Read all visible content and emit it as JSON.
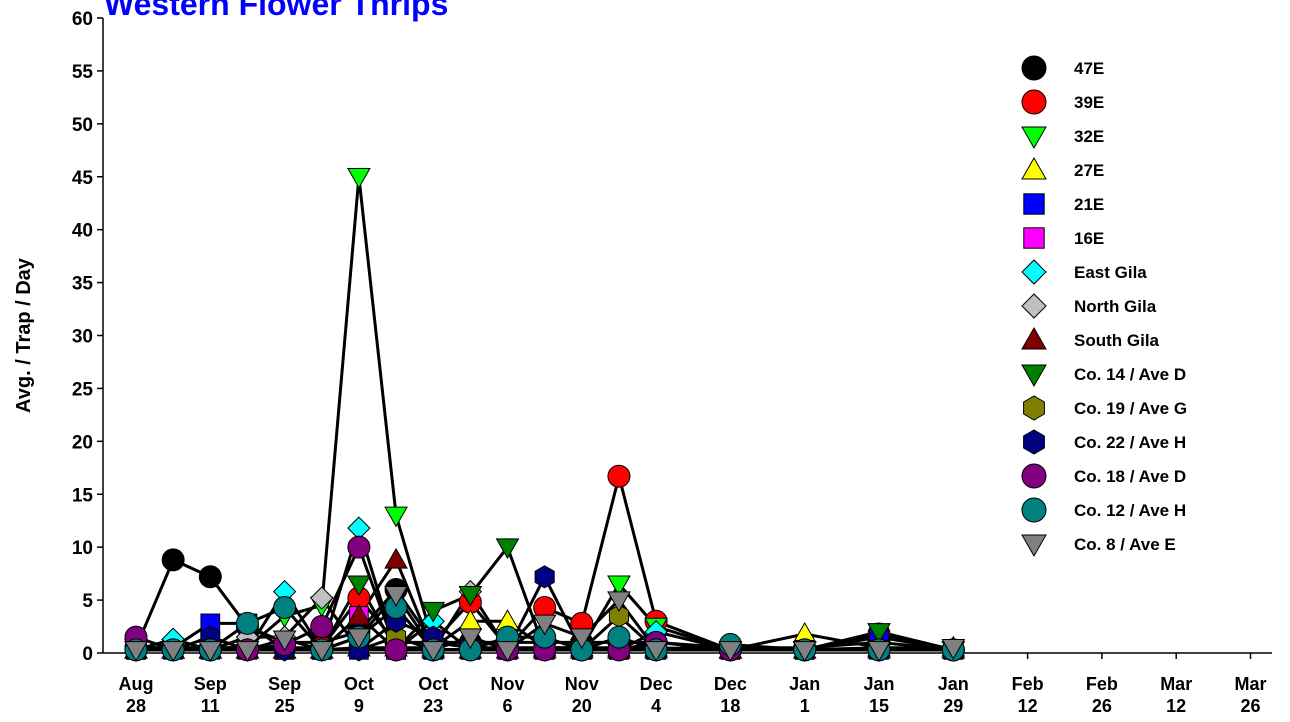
{
  "chart_data": {
    "type": "line",
    "title": "Western Flower Thrips",
    "xlabel": "",
    "ylabel": "Avg.  / Trap / Day",
    "ylim": [
      0,
      60
    ],
    "yticks": [
      0,
      5,
      10,
      15,
      20,
      25,
      30,
      35,
      40,
      45,
      50,
      55,
      60
    ],
    "grid": false,
    "legend_position": "top-right",
    "x_categories": [
      [
        "Aug",
        "28"
      ],
      [
        "Sep",
        "11"
      ],
      [
        "Sep",
        "25"
      ],
      [
        "Oct",
        "9"
      ],
      [
        "Oct",
        "23"
      ],
      [
        "Nov",
        "6"
      ],
      [
        "Nov",
        "20"
      ],
      [
        "Dec",
        "4"
      ],
      [
        "Dec",
        "18"
      ],
      [
        "Jan",
        "1"
      ],
      [
        "Jan",
        "15"
      ],
      [
        "Jan",
        "29"
      ],
      [
        "Feb",
        "12"
      ],
      [
        "Feb",
        "26"
      ],
      [
        "Mar",
        "12"
      ],
      [
        "Mar",
        "26"
      ]
    ],
    "series": [
      {
        "name": "47E",
        "marker": "circle",
        "color": "#000000",
        "x": [
          0,
          0.5,
          1,
          1.5,
          2,
          2.5,
          3,
          3.5,
          4,
          4.5,
          5,
          5.5,
          6,
          6.5,
          7,
          8,
          9,
          10,
          11
        ],
        "y": [
          0.5,
          8.8,
          7.2,
          2.5,
          1,
          1,
          2,
          6,
          1,
          1,
          1,
          1,
          1,
          1,
          1,
          0.5,
          0.5,
          1,
          0.3
        ]
      },
      {
        "name": "39E",
        "marker": "circle",
        "color": "#ff0000",
        "x": [
          0,
          0.5,
          1,
          1.5,
          2,
          2.5,
          3,
          3.5,
          4,
          4.5,
          5,
          5.5,
          6,
          6.5,
          7,
          8,
          9,
          10,
          11
        ],
        "y": [
          0.5,
          0.5,
          0.5,
          0.5,
          0.5,
          0.5,
          5.2,
          1,
          1,
          4.8,
          0.5,
          4.3,
          2.8,
          16.7,
          3,
          0.3,
          0.3,
          1.8,
          0.3
        ]
      },
      {
        "name": "32E",
        "marker": "triangle-down",
        "color": "#00ff00",
        "x": [
          0,
          0.5,
          1,
          1.5,
          2,
          2.5,
          3,
          3.5,
          4,
          4.5,
          5,
          5.5,
          6,
          6.5,
          7,
          8,
          9,
          10,
          11
        ],
        "y": [
          0.5,
          0.5,
          0.5,
          0.5,
          3.5,
          4.5,
          45,
          13,
          1,
          0.5,
          0.5,
          0.5,
          0.5,
          6.5,
          2.5,
          0.3,
          0.3,
          0.5,
          0.3
        ]
      },
      {
        "name": "27E",
        "marker": "triangle-up",
        "color": "#ffff00",
        "x": [
          0,
          0.5,
          1,
          1.5,
          2,
          2.5,
          3,
          3.5,
          4,
          4.5,
          5,
          5.5,
          6,
          6.5,
          7,
          8,
          9,
          10,
          11
        ],
        "y": [
          0.3,
          0.3,
          0.3,
          0.3,
          0.3,
          0.3,
          0.5,
          0.5,
          0.5,
          3,
          3,
          0.5,
          0.5,
          0.5,
          0.5,
          0.3,
          1.8,
          0.5,
          0.5
        ]
      },
      {
        "name": "21E",
        "marker": "square",
        "color": "#0000ff",
        "x": [
          0,
          0.5,
          1,
          1.5,
          2,
          2.5,
          3,
          3.5,
          4,
          4.5,
          5,
          5.5,
          6,
          6.5,
          7,
          8,
          9,
          10,
          11
        ],
        "y": [
          0.3,
          0.5,
          2.8,
          2.8,
          0.3,
          0.3,
          0.3,
          0.3,
          0.3,
          0.3,
          0.3,
          0.3,
          0.3,
          0.3,
          0.3,
          0.3,
          0.3,
          1.5,
          0.3
        ]
      },
      {
        "name": "16E",
        "marker": "square",
        "color": "#ff00ff",
        "x": [
          0,
          0.5,
          1,
          1.5,
          2,
          2.5,
          3,
          3.5,
          4,
          4.5,
          5,
          5.5,
          6,
          6.5,
          7,
          8,
          9,
          10,
          11
        ],
        "y": [
          0.3,
          0.3,
          0.3,
          0.3,
          0.3,
          0.3,
          3.5,
          0.3,
          0.3,
          0.3,
          0.3,
          0.3,
          0.3,
          0.3,
          0.3,
          0.3,
          0.3,
          0.3,
          0.3
        ]
      },
      {
        "name": "East Gila",
        "marker": "diamond",
        "color": "#00ffff",
        "x": [
          0,
          0.5,
          1,
          1.5,
          2,
          2.5,
          3,
          3.5,
          4,
          4.5,
          5,
          5.5,
          6,
          6.5,
          7,
          8,
          9,
          10,
          11
        ],
        "y": [
          0.3,
          1.3,
          0.3,
          0.3,
          5.8,
          0.3,
          11.8,
          0.3,
          3,
          0.3,
          0.3,
          0.3,
          0.3,
          0.3,
          2,
          0.3,
          0.3,
          0.3,
          0.3
        ]
      },
      {
        "name": "North Gila",
        "marker": "diamond",
        "color": "#c0c0c0",
        "x": [
          0,
          0.5,
          1,
          1.5,
          2,
          2.5,
          3,
          3.5,
          4,
          4.5,
          5,
          5.5,
          6,
          6.5,
          7,
          8,
          9,
          10,
          11
        ],
        "y": [
          0.3,
          0.3,
          0.3,
          1.5,
          1.5,
          5.2,
          0.3,
          0.3,
          0.3,
          5.8,
          0.3,
          0.3,
          0.3,
          0.3,
          0.3,
          0.3,
          0.3,
          0.3,
          0.3
        ]
      },
      {
        "name": "South Gila",
        "marker": "triangle-up",
        "color": "#800000",
        "x": [
          0,
          0.5,
          1,
          1.5,
          2,
          2.5,
          3,
          3.5,
          4,
          4.5,
          5,
          5.5,
          6,
          6.5,
          7,
          8,
          9,
          10,
          11
        ],
        "y": [
          0.3,
          0.3,
          0.3,
          0.3,
          0.3,
          0.3,
          3.5,
          8.8,
          0.3,
          0.3,
          0.3,
          0.3,
          0.3,
          0.3,
          0.3,
          0.3,
          0.3,
          0.3,
          0.3
        ]
      },
      {
        "name": "Co. 14 / Ave D",
        "marker": "triangle-down",
        "color": "#008000",
        "x": [
          0,
          0.5,
          1,
          1.5,
          2,
          2.5,
          3,
          3.5,
          4,
          4.5,
          5,
          5.5,
          6,
          6.5,
          7,
          8,
          9,
          10,
          11
        ],
        "y": [
          0.3,
          0.3,
          0.3,
          0.3,
          0.3,
          0.3,
          6.5,
          0.3,
          4,
          5.5,
          10,
          0.3,
          0.3,
          0.3,
          0.3,
          0.3,
          0.3,
          2,
          0.3
        ]
      },
      {
        "name": "Co. 19 / Ave G",
        "marker": "hexagon",
        "color": "#808000",
        "x": [
          0,
          0.5,
          1,
          1.5,
          2,
          2.5,
          3,
          3.5,
          4,
          4.5,
          5,
          5.5,
          6,
          6.5,
          7,
          8,
          9,
          10,
          11
        ],
        "y": [
          0.3,
          0.3,
          0.3,
          0.3,
          0.3,
          0.3,
          0.3,
          1.5,
          0.3,
          0.3,
          0.3,
          0.3,
          0.3,
          3.5,
          0.3,
          0.3,
          0.3,
          0.3,
          0.3
        ]
      },
      {
        "name": "Co. 22 / Ave H",
        "marker": "hexagon",
        "color": "#000080",
        "x": [
          0,
          0.5,
          1,
          1.5,
          2,
          2.5,
          3,
          3.5,
          4,
          4.5,
          5,
          5.5,
          6,
          6.5,
          7,
          8,
          9,
          10,
          11
        ],
        "y": [
          0.3,
          0.3,
          1.5,
          0.3,
          0.3,
          0.3,
          0.3,
          3,
          1.5,
          0.3,
          0.3,
          7.2,
          0.3,
          0.3,
          0.3,
          0.3,
          0.3,
          0.3,
          0.3
        ]
      },
      {
        "name": "Co. 18 / Ave D",
        "marker": "circle",
        "color": "#800080",
        "x": [
          0,
          0.5,
          1,
          1.5,
          2,
          2.5,
          3,
          3.5,
          4,
          4.5,
          5,
          5.5,
          6,
          6.5,
          7,
          8,
          9,
          10,
          11
        ],
        "y": [
          1.5,
          0.3,
          0.3,
          0.3,
          0.8,
          2.5,
          10,
          0.3,
          0.3,
          0.3,
          0.3,
          0.3,
          0.3,
          0.3,
          1,
          0.3,
          0.3,
          0.3,
          0.3
        ]
      },
      {
        "name": "Co. 12 / Ave H",
        "marker": "circle",
        "color": "#008080",
        "x": [
          0,
          0.5,
          1,
          1.5,
          2,
          2.5,
          3,
          3.5,
          4,
          4.5,
          5,
          5.5,
          6,
          6.5,
          7,
          8,
          9,
          10,
          11
        ],
        "y": [
          0.3,
          0.3,
          0.3,
          2.8,
          4.3,
          0.3,
          1.5,
          4.3,
          0.3,
          0.3,
          1.5,
          1.5,
          0.3,
          1.5,
          0.3,
          0.8,
          0.3,
          0.3,
          0.3
        ]
      },
      {
        "name": "Co. 8 / Ave E",
        "marker": "triangle-down",
        "color": "#808080",
        "x": [
          0,
          0.5,
          1,
          1.5,
          2,
          2.5,
          3,
          3.5,
          4,
          4.5,
          5,
          5.5,
          6,
          6.5,
          7,
          8,
          9,
          10,
          11
        ],
        "y": [
          0.3,
          0.3,
          0.3,
          0.3,
          1.3,
          0.3,
          1.5,
          5.5,
          0.3,
          1.5,
          0.3,
          2.8,
          1.5,
          5,
          0.3,
          0.3,
          0.3,
          0.3,
          0.5
        ]
      }
    ]
  }
}
